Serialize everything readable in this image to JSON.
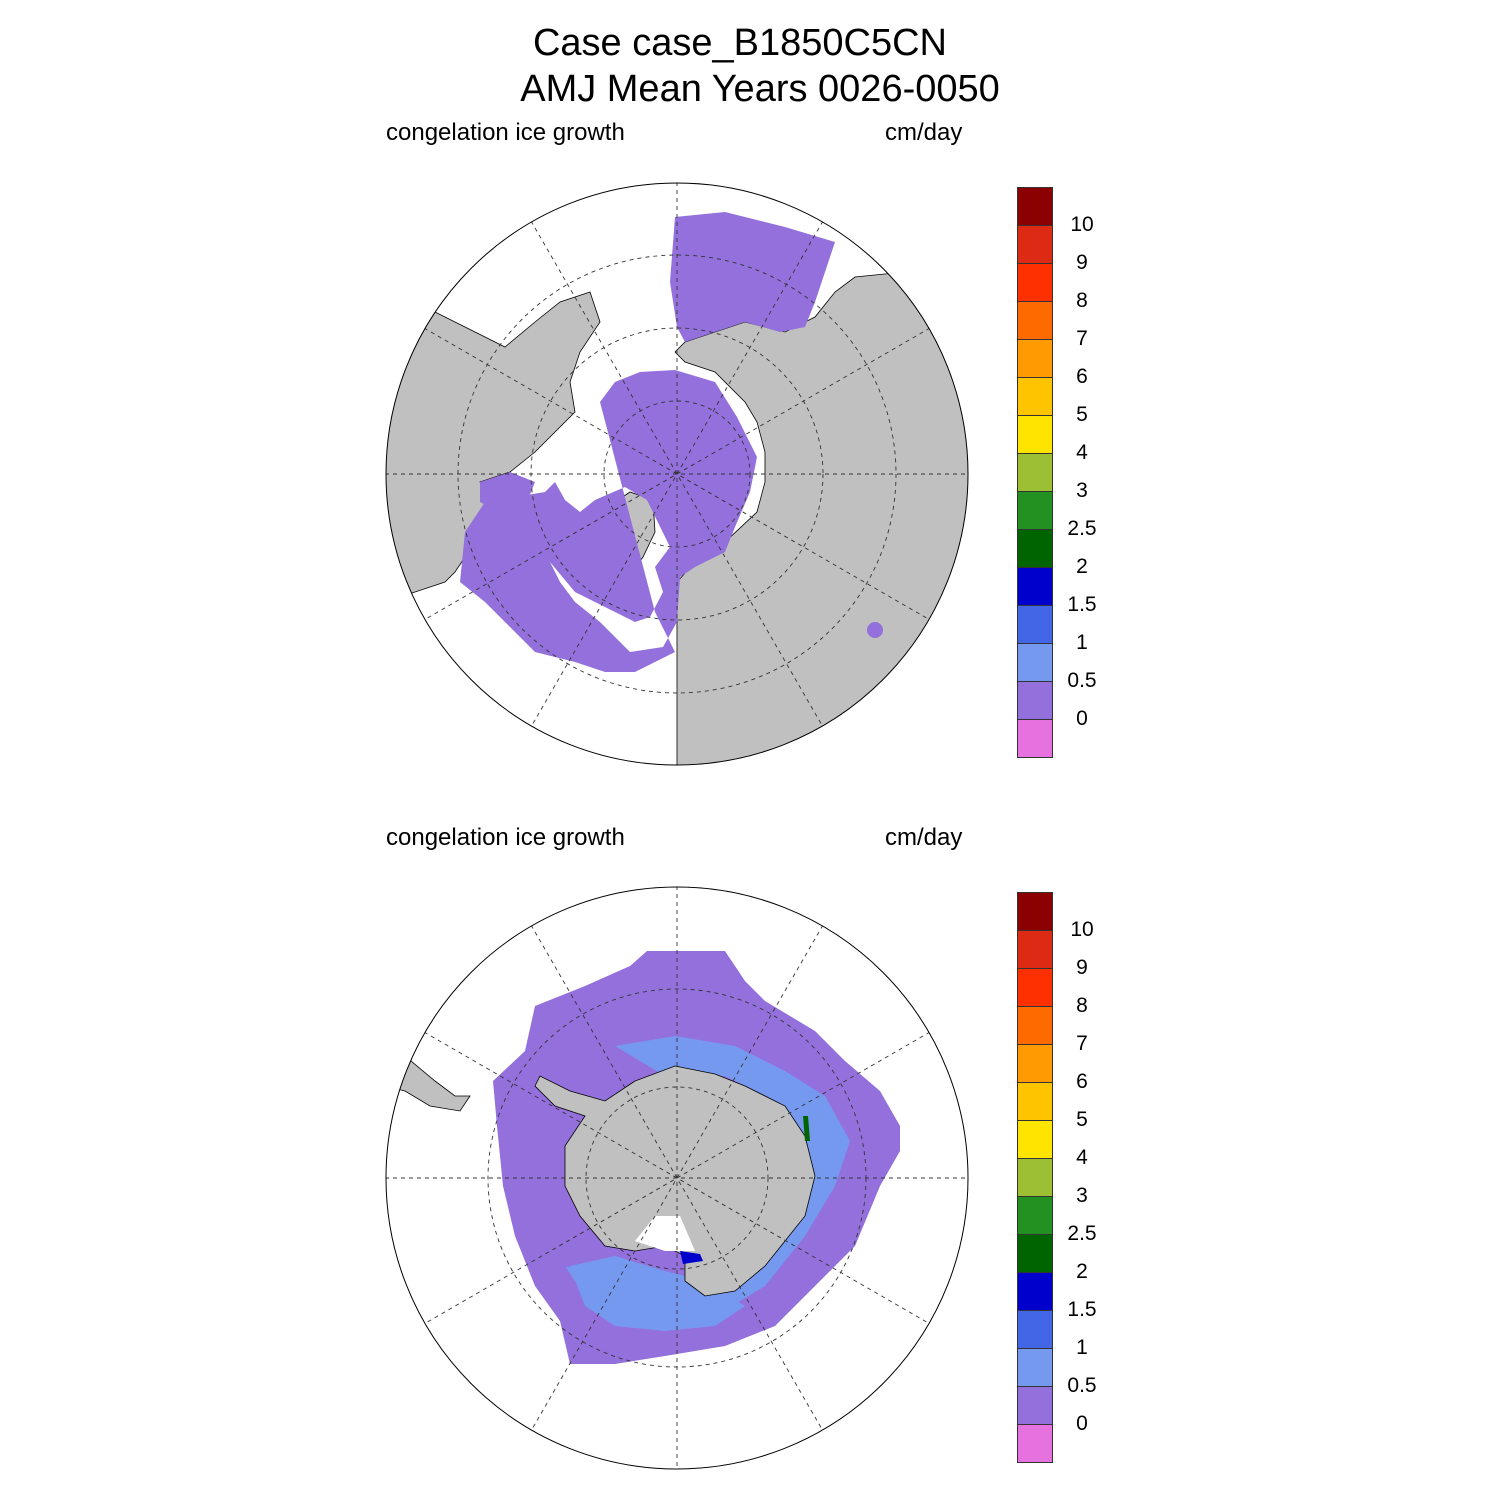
{
  "header": {
    "line1": "Case case_B1850C5CN",
    "line2": "AMJ Mean   Years 0026-0050"
  },
  "panels": [
    {
      "left_label": "congelation ice growth",
      "right_label": "cm/day",
      "hemisphere": "north"
    },
    {
      "left_label": "congelation ice growth",
      "right_label": "cm/day",
      "hemisphere": "south"
    }
  ],
  "colorbar": {
    "labels": [
      "10",
      "9",
      "8",
      "7",
      "6",
      "5",
      "4",
      "3",
      "2.5",
      "2",
      "1.5",
      "1",
      "0.5",
      "0"
    ],
    "colors": [
      "#8b0000",
      "#dc2a14",
      "#ff3000",
      "#ff6a00",
      "#ff9a00",
      "#ffc400",
      "#ffe400",
      "#9cbf34",
      "#229122",
      "#006400",
      "#0000cd",
      "#4266e6",
      "#7699f0",
      "#9370db",
      "#e672e0"
    ]
  },
  "map_colors": {
    "land": "#c0c0c0",
    "ice_lowest": "#9370db",
    "ice_mid": "#7699f0",
    "ice_high": "#4266e6",
    "ice_top": "#0000cd"
  }
}
